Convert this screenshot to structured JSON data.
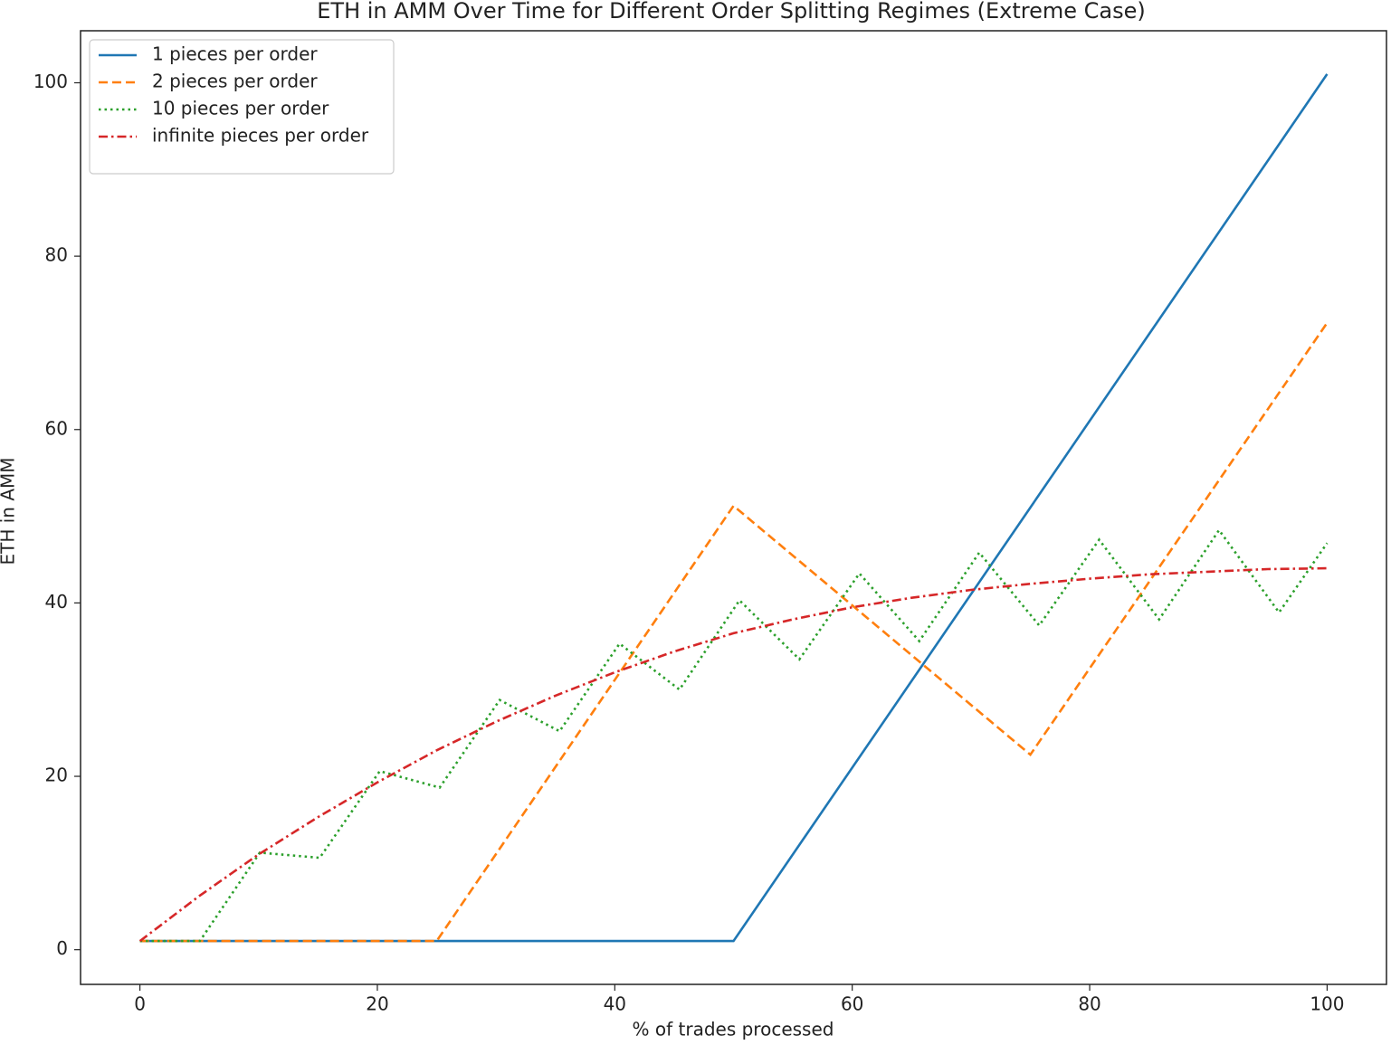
{
  "chart_data": {
    "type": "line",
    "title": "ETH in AMM Over Time for Different Order Splitting Regimes (Extreme Case)",
    "x_label": "% of trades processed",
    "y_label": "ETH in AMM",
    "xlim": [
      -5,
      105
    ],
    "ylim": [
      -4,
      106
    ],
    "xticks": [
      0,
      20,
      40,
      60,
      80,
      100
    ],
    "yticks": [
      0,
      20,
      40,
      60,
      80,
      100
    ],
    "legend": "upper left",
    "grid": false,
    "series": [
      {
        "name": "1 pieces per order",
        "color": "#1f77b4",
        "dash": "solid",
        "x": [
          0,
          50,
          100
        ],
        "values": [
          1,
          1,
          101
        ]
      },
      {
        "name": "2 pieces per order",
        "color": "#ff7f0e",
        "dash": "dashed",
        "x": [
          0,
          25,
          50,
          75,
          100
        ],
        "values": [
          1,
          1,
          51.2,
          22.5,
          72.3
        ]
      },
      {
        "name": "10 pieces per order",
        "color": "#2ca02c",
        "dash": "dotted",
        "x": [
          0,
          5.05,
          10.1,
          15.15,
          20.2,
          25.25,
          30.3,
          35.35,
          40.4,
          45.45,
          50.5,
          55.55,
          60.6,
          65.65,
          70.7,
          75.75,
          80.8,
          85.85,
          90.9,
          95.95,
          100
        ],
        "values": [
          1,
          1,
          11.2,
          10.6,
          20.6,
          18.7,
          28.8,
          25.2,
          35.3,
          30,
          40.3,
          33.5,
          43.4,
          35.6,
          45.8,
          37.4,
          47.3,
          38.1,
          48.4,
          38.9,
          46.9
        ]
      },
      {
        "name": "infinite pieces per order",
        "color": "#d62728",
        "dash": "dashdot",
        "x": [
          0,
          5,
          10,
          15,
          20,
          25,
          30,
          35,
          40,
          45,
          50,
          55,
          60,
          65,
          70,
          75,
          80,
          85,
          90,
          95,
          100
        ],
        "values": [
          1,
          6.2,
          11,
          15.3,
          19.3,
          23,
          26.3,
          29.3,
          32,
          34.4,
          36.5,
          38.1,
          39.5,
          40.6,
          41.5,
          42.2,
          42.8,
          43.3,
          43.6,
          43.9,
          44
        ]
      }
    ]
  }
}
